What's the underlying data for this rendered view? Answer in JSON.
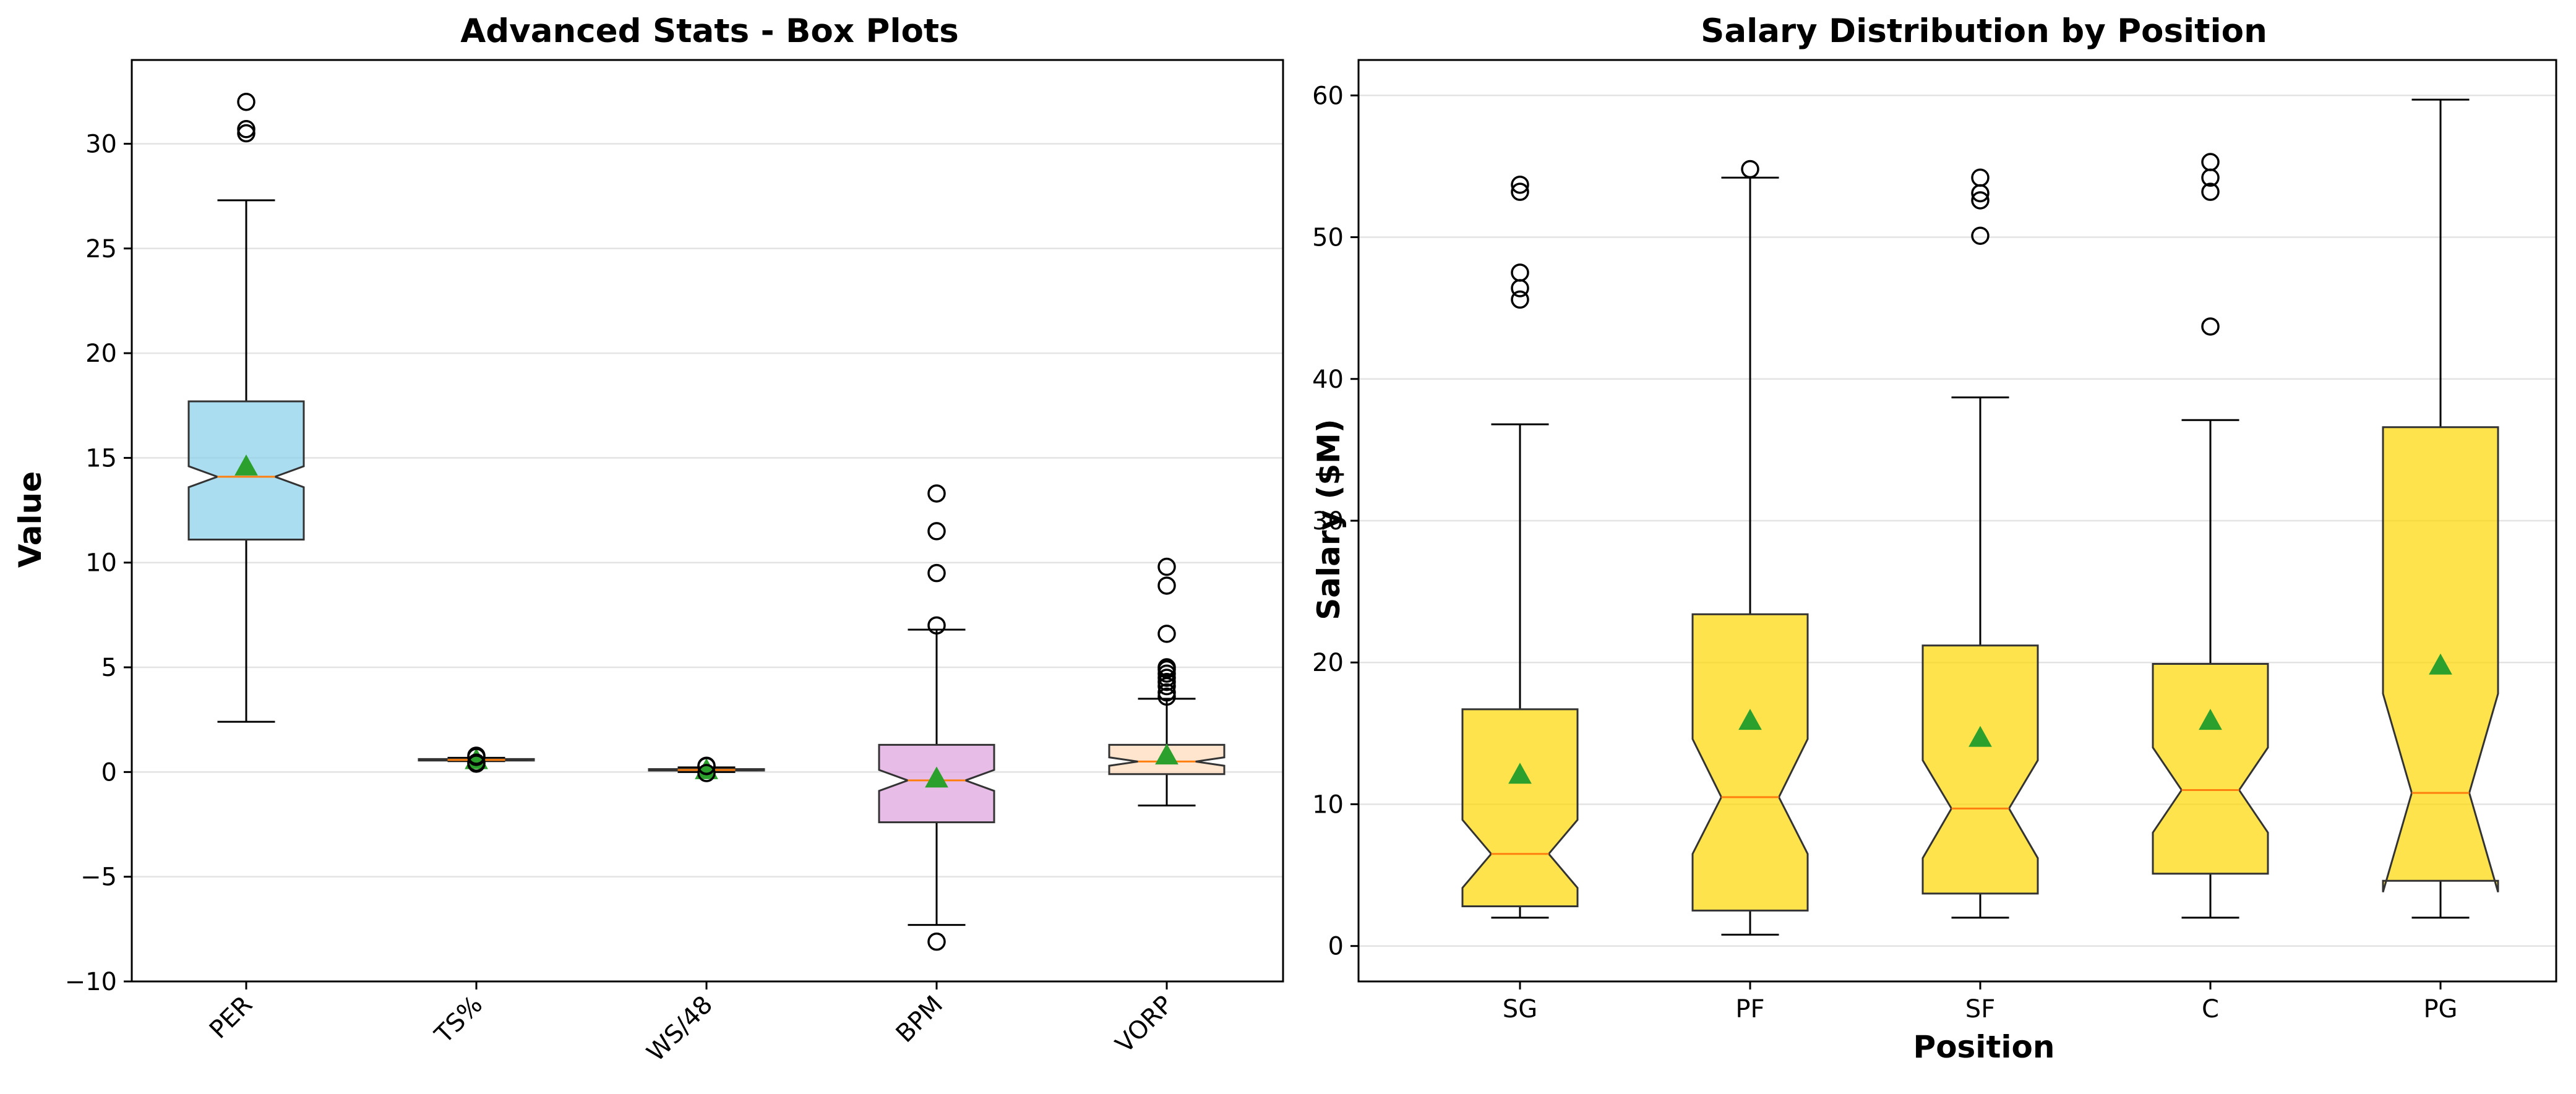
{
  "chart_data": [
    {
      "type": "box",
      "title": "Advanced Stats - Box Plots",
      "xlabel": "",
      "ylabel": "Value",
      "ylim": [
        -10,
        34
      ],
      "yticks": [
        -10,
        -5,
        0,
        5,
        10,
        15,
        20,
        25,
        30
      ],
      "grid": "y",
      "notched": true,
      "categories": [
        "PER",
        "TS%",
        "WS/48",
        "BPM",
        "VORP"
      ],
      "colors": [
        "#87ceeb",
        "#f4a460",
        "#f4a460",
        "#dda0dd",
        "#ffdab9"
      ],
      "boxes": [
        {
          "category": "PER",
          "whislo": 2.4,
          "q1": 11.1,
          "median": 14.1,
          "q3": 17.7,
          "whishi": 27.3,
          "mean": 14.6,
          "notch": [
            13.6,
            14.6
          ],
          "fliers": [
            30.5,
            30.7,
            32.0
          ]
        },
        {
          "category": "TS%",
          "whislo": 0.52,
          "q1": 0.55,
          "median": 0.58,
          "q3": 0.62,
          "whishi": 0.68,
          "mean": 0.58,
          "notch": [
            0.57,
            0.59
          ],
          "fliers": [
            0.4,
            0.45,
            0.72,
            0.78
          ]
        },
        {
          "category": "WS/48",
          "whislo": 0.0,
          "q1": 0.07,
          "median": 0.1,
          "q3": 0.14,
          "whishi": 0.22,
          "mean": 0.1,
          "notch": [
            0.09,
            0.11
          ],
          "fliers": [
            -0.05,
            0.28,
            0.3
          ]
        },
        {
          "category": "BPM",
          "whislo": -7.3,
          "q1": -2.4,
          "median": -0.4,
          "q3": 1.3,
          "whishi": 6.8,
          "mean": -0.3,
          "notch": [
            -0.9,
            0.1
          ],
          "fliers": [
            -8.1,
            7.0,
            9.5,
            11.5,
            13.3
          ]
        },
        {
          "category": "VORP",
          "whislo": -1.6,
          "q1": -0.1,
          "median": 0.5,
          "q3": 1.3,
          "whishi": 3.5,
          "mean": 0.8,
          "notch": [
            0.3,
            0.7
          ],
          "fliers": [
            3.6,
            3.8,
            4.1,
            4.3,
            4.5,
            4.7,
            4.9,
            5.0,
            6.6,
            8.9,
            9.8
          ]
        }
      ]
    },
    {
      "type": "box",
      "title": "Salary Distribution by Position",
      "xlabel": "Position",
      "ylabel": "Salary ($M)",
      "ylim": [
        -2.5,
        62.5
      ],
      "yticks": [
        0,
        10,
        20,
        30,
        40,
        50,
        60
      ],
      "grid": "y",
      "notched": true,
      "categories": [
        "SG",
        "PF",
        "SF",
        "C",
        "PG"
      ],
      "colors": [
        "#ffd700",
        "#ffd700",
        "#ffd700",
        "#ffd700",
        "#ffd700"
      ],
      "boxes": [
        {
          "category": "SG",
          "whislo": 2.0,
          "q1": 2.8,
          "median": 6.5,
          "q3": 16.7,
          "whishi": 36.8,
          "mean": 12.1,
          "notch": [
            4.1,
            8.9
          ],
          "fliers": [
            45.6,
            46.4,
            47.5,
            53.2,
            53.7
          ]
        },
        {
          "category": "PF",
          "whislo": 0.8,
          "q1": 2.5,
          "median": 10.5,
          "q3": 23.4,
          "whishi": 54.2,
          "mean": 15.9,
          "notch": [
            6.5,
            14.6
          ],
          "fliers": [
            54.8
          ]
        },
        {
          "category": "SF",
          "whislo": 2.0,
          "q1": 3.7,
          "median": 9.7,
          "q3": 21.2,
          "whishi": 38.7,
          "mean": 14.7,
          "notch": [
            6.2,
            13.1
          ],
          "fliers": [
            50.1,
            52.6,
            53.1,
            54.2
          ]
        },
        {
          "category": "C",
          "whislo": 2.0,
          "q1": 5.1,
          "median": 11.0,
          "q3": 19.9,
          "whishi": 37.1,
          "mean": 15.9,
          "notch": [
            8.0,
            14.0
          ],
          "fliers": [
            43.7,
            53.2,
            54.2,
            55.3
          ]
        },
        {
          "category": "PG",
          "whislo": 2.0,
          "q1": 4.6,
          "median": 10.8,
          "q3": 36.6,
          "whishi": 59.7,
          "mean": 19.8,
          "notch": [
            3.8,
            17.8
          ],
          "fliers": []
        }
      ]
    }
  ]
}
